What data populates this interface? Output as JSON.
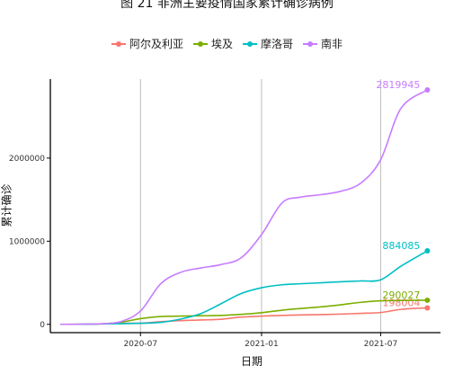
{
  "chart_data": {
    "type": "line",
    "title": "图 21 非洲主要疫情国家累计确诊病例",
    "xlabel": "日期",
    "ylabel": "累计确诊",
    "x_ticks": [
      "2020-07",
      "2021-01",
      "2021-07"
    ],
    "y_ticks": [
      "0",
      "1000000",
      "2000000"
    ],
    "ylim": [
      -100000,
      2950000
    ],
    "xlim": [
      "2020-02-15",
      "2021-09-30"
    ],
    "grid": "major-x",
    "legend": "top",
    "x": [
      "2020-03-01",
      "2020-04-01",
      "2020-05-01",
      "2020-06-01",
      "2020-07-01",
      "2020-08-01",
      "2020-09-01",
      "2020-10-01",
      "2020-11-01",
      "2020-12-01",
      "2021-01-01",
      "2021-02-01",
      "2021-03-01",
      "2021-04-01",
      "2021-05-01",
      "2021-06-01",
      "2021-07-01",
      "2021-08-01",
      "2021-09-10"
    ],
    "series": [
      {
        "name": "阿尔及利亚",
        "color": "#f8766d",
        "label": "198004",
        "values": [
          0,
          800,
          4500,
          13000,
          14000,
          32000,
          45000,
          52000,
          62000,
          87000,
          99000,
          107000,
          113000,
          117000,
          123000,
          132000,
          142000,
          180000,
          198004
        ]
      },
      {
        "name": "埃及",
        "color": "#7cae00",
        "label": "290027",
        "values": [
          0,
          700,
          5500,
          25000,
          68000,
          94000,
          99000,
          103000,
          108000,
          120000,
          140000,
          170000,
          190000,
          210000,
          235000,
          265000,
          283000,
          287000,
          290027
        ]
      },
      {
        "name": "摩洛哥",
        "color": "#00bfc4",
        "label": "884085",
        "values": [
          0,
          600,
          4400,
          8000,
          12500,
          24000,
          65000,
          130000,
          250000,
          370000,
          440000,
          476000,
          488000,
          500000,
          512000,
          522000,
          535000,
          700000,
          884085
        ]
      },
      {
        "name": "南非",
        "color": "#c77cff",
        "label": "2819945",
        "values": [
          0,
          1400,
          5900,
          33000,
          160000,
          490000,
          628000,
          678000,
          720000,
          800000,
          1080000,
          1460000,
          1530000,
          1560000,
          1600000,
          1700000,
          1980000,
          2600000,
          2819945
        ]
      }
    ]
  }
}
